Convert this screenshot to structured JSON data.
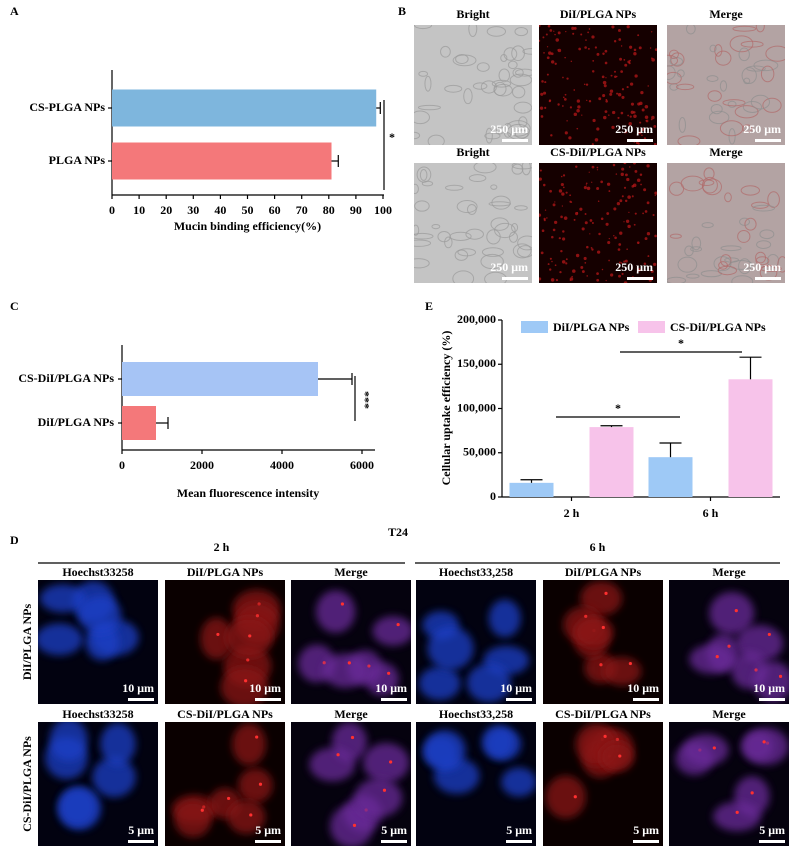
{
  "chart_data": [
    {
      "type": "bar",
      "panel": "A",
      "orientation": "horizontal",
      "categories": [
        "CS-PLGA NPs",
        "PLGA NPs"
      ],
      "values": [
        97.5,
        81
      ],
      "errors": [
        1.5,
        2.5
      ],
      "colors": [
        "#7eb6dd",
        "#f4787a"
      ],
      "xlim": [
        0,
        100
      ],
      "xticks": [
        0,
        10,
        20,
        30,
        40,
        50,
        60,
        70,
        80,
        90,
        100
      ],
      "xlabel": "Mucin binding efficiency(%)",
      "annotations": [
        "*"
      ]
    },
    {
      "type": "bar",
      "panel": "C",
      "orientation": "horizontal",
      "categories": [
        "CS-DiI/PLGA NPs",
        "DiI/PLGA NPs"
      ],
      "values": [
        4900,
        850
      ],
      "errors": [
        850,
        300
      ],
      "colors": [
        "#a6c4f5",
        "#f4787a"
      ],
      "xlim": [
        0,
        6300
      ],
      "xticks": [
        0,
        2000,
        4000,
        6000
      ],
      "xlabel": "Mean fluorescence intensity",
      "annotations": [
        "***"
      ]
    },
    {
      "type": "grouped_bar",
      "panel": "E",
      "categories": [
        "2 h",
        "6 h"
      ],
      "series": [
        {
          "name": "DiI/PLGA NPs",
          "color": "#9ec9f6",
          "values": [
            16000,
            45000
          ],
          "errors": [
            3500,
            16000
          ]
        },
        {
          "name": "CS-DiI/PLGA NPs",
          "color": "#f7c3ea",
          "values": [
            79000,
            133000
          ],
          "errors": [
            1500,
            25000
          ]
        }
      ],
      "ylim": [
        0,
        200000
      ],
      "yticks": [
        0,
        {
          "value": 50000,
          "label": "50,000"
        },
        {
          "value": 100000,
          "label": "100,000"
        },
        {
          "value": 150000,
          "label": "150,000"
        },
        {
          "value": 200000,
          "label": "200,000"
        }
      ],
      "ylabel": "Cellular uptake efficiency (%)",
      "legend": "top",
      "annotations": [
        "*",
        "*"
      ]
    }
  ],
  "panel_b": {
    "label": "B",
    "rows": [
      [
        "Bright",
        "DiI/PLGA NPs",
        "Merge"
      ],
      [
        "Bright",
        "CS-DiI/PLGA NPs",
        "Merge"
      ]
    ],
    "scale": "250 μm"
  },
  "panel_d": {
    "label": "D",
    "title": "T24",
    "groups": [
      "2 h",
      "6 h"
    ],
    "row_labels": [
      "DiI/PLGA NPs",
      "CS-DiI/PLGA NPs"
    ],
    "rows": [
      [
        "Hoechst33258",
        "DiI/PLGA NPs",
        "Merge",
        "Hoechst33,258",
        "DiI/PLGA NPs",
        "Merge"
      ],
      [
        "Hoechst33258",
        "CS-DiI/PLGA NPs",
        "Merge",
        "Hoechst33,258",
        "CS-DiI/PLGA NPs",
        "Merge"
      ]
    ],
    "scales": [
      "10 μm",
      "5 μm"
    ]
  }
}
